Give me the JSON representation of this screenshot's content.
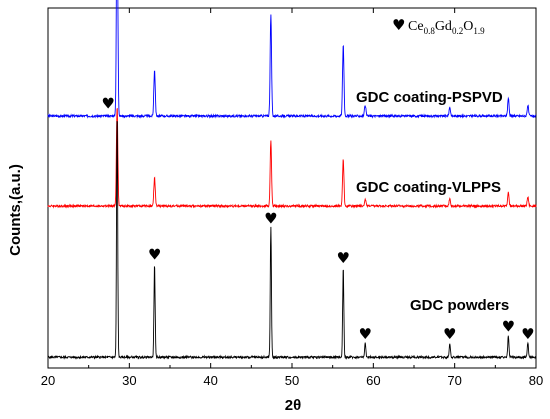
{
  "chart_data": {
    "type": "line",
    "xlabel": "2θ",
    "ylabel": "Counts,(a.u.)",
    "xlim": [
      20,
      80
    ],
    "xticks": [
      20,
      30,
      40,
      50,
      60,
      70,
      80
    ],
    "grid": false,
    "legend": {
      "position": "top-right",
      "marker": "♥",
      "text_main": [
        "Ce",
        "Gd",
        "O"
      ],
      "text_sub": [
        "0.8",
        "0.2",
        "1.9"
      ]
    },
    "series": [
      {
        "name": "GDC coating-PSPVD",
        "color": "#0000ff",
        "baseline": 0.14,
        "peaks": [
          {
            "x": 28.5,
            "height": 0.62
          },
          {
            "x": 33.1,
            "height": 0.13
          },
          {
            "x": 47.4,
            "height": 0.28
          },
          {
            "x": 56.3,
            "height": 0.2
          },
          {
            "x": 59.0,
            "height": 0.03
          },
          {
            "x": 69.4,
            "height": 0.025
          },
          {
            "x": 76.6,
            "height": 0.05
          },
          {
            "x": 79.0,
            "height": 0.03
          }
        ]
      },
      {
        "name": "GDC coating-VLPPS",
        "color": "#ff0000",
        "baseline": -0.07,
        "peaks": [
          {
            "x": 28.5,
            "height": 0.28
          },
          {
            "x": 33.1,
            "height": 0.08
          },
          {
            "x": 47.4,
            "height": 0.18
          },
          {
            "x": 56.3,
            "height": 0.13
          },
          {
            "x": 59.0,
            "height": 0.02
          },
          {
            "x": 69.4,
            "height": 0.02
          },
          {
            "x": 76.6,
            "height": 0.04
          },
          {
            "x": 79.0,
            "height": 0.025
          }
        ]
      },
      {
        "name": "GDC powders",
        "color": "#000000",
        "baseline": -0.5,
        "peaks": [
          {
            "x": 28.5,
            "height": 0.68
          },
          {
            "x": 33.1,
            "height": 0.26
          },
          {
            "x": 47.4,
            "height": 0.36
          },
          {
            "x": 56.3,
            "height": 0.25
          },
          {
            "x": 59.0,
            "height": 0.04
          },
          {
            "x": 69.4,
            "height": 0.04
          },
          {
            "x": 76.6,
            "height": 0.06
          },
          {
            "x": 79.0,
            "height": 0.04
          }
        ]
      }
    ],
    "annotations": [
      "♥",
      "♥",
      "♥",
      "♥",
      "♥",
      "♥",
      "♥",
      "♥"
    ]
  }
}
